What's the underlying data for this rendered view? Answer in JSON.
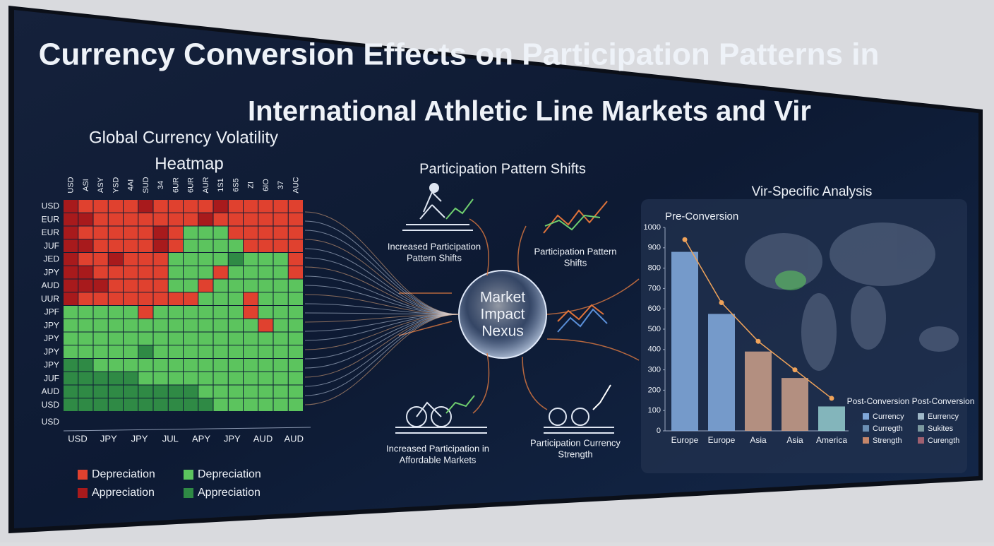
{
  "title_lines": [
    "Currency Conversion Effects on Participation Patterns in",
    "International Athletic Line Markets and Vir"
  ],
  "heatmap": {
    "title_lines": [
      "Global Currency Volatility",
      "Heatmap"
    ],
    "columns": [
      "USD",
      "ASI",
      "ASY",
      "YSD",
      "4AI",
      "SUD",
      "34",
      "6UR",
      "6UR",
      "AUR",
      "1S1",
      "6S5",
      "ZI",
      "6IO",
      "37",
      "AUC"
    ],
    "rows": [
      "USD",
      "EUR",
      "EUR",
      "JUF",
      "JED",
      "JPY",
      "AUD",
      "UUR",
      "JPF",
      "JPY",
      "JPY",
      "JPY",
      "JPY",
      "JUF",
      "AUD",
      "USD"
    ],
    "extra_row_label": "USD",
    "bottom_labels": [
      "USD",
      "JPY",
      "JPY",
      "JUL",
      "APY",
      "JPY",
      "AUD",
      "AUD"
    ],
    "colors": [
      "#e0412f",
      "#a81a1c",
      "#5cc45e",
      "#2f8a45"
    ],
    "cells": [
      "1000010000100000",
      "1100000001000000",
      "1000001022200000",
      "1100001022220000",
      "1001000222232220",
      "1100000222022220",
      "1110000220222222",
      "1000000002220222",
      "2222202222220222",
      "2222222222222022",
      "2222222222222222",
      "2222232222222222",
      "3322222222222222",
      "3333322222222222",
      "3333333332222222",
      "3333333333222222"
    ],
    "legend": [
      "Depreciation",
      "Appreciation",
      "Depreciation",
      "Appreciation"
    ]
  },
  "nexus": {
    "heading": "Participation Pattern Shifts",
    "center_lines": [
      "Market",
      "Impact",
      "Nexus"
    ],
    "captions": [
      [
        "Increased Participation",
        "Pattern Shifts"
      ],
      [
        "Participation Pattern",
        "Shifts"
      ],
      [
        "Increased Participation in",
        "Affordable Markets"
      ],
      [
        "Participation Currency",
        "Strength"
      ]
    ]
  },
  "analysis": {
    "title": "Vir-Specific Analysis",
    "panel_title": "Pre-Conversion",
    "chart": {
      "type": "bar",
      "categories": [
        "Europe",
        "Europe",
        "Asia",
        "Asia",
        "America"
      ],
      "values": [
        880,
        575,
        390,
        260,
        120
      ],
      "colors": [
        "#7fa6d8",
        "#7fa6d8",
        "#c49a86",
        "#c49a86",
        "#8fc4c8"
      ],
      "line_values": [
        940,
        630,
        440,
        300,
        160
      ],
      "line_color": "#f0a35a",
      "ylim": [
        0,
        1000
      ],
      "yticks": [
        0,
        100,
        200,
        300,
        400,
        500,
        600,
        700,
        800,
        900,
        1000
      ]
    },
    "legend_title": "Post-Conversion Post-Conversion",
    "legend": [
      {
        "label": "Currency",
        "color": "#7fa6d8"
      },
      {
        "label": "Curregth",
        "color": "#6b8fb3"
      },
      {
        "label": "Strength",
        "color": "#c4866a"
      },
      {
        "label": "Eurrency",
        "color": "#9fb8c8"
      },
      {
        "label": "Sukites",
        "color": "#7c9aa0"
      },
      {
        "label": "Curength",
        "color": "#a06070"
      }
    ]
  }
}
